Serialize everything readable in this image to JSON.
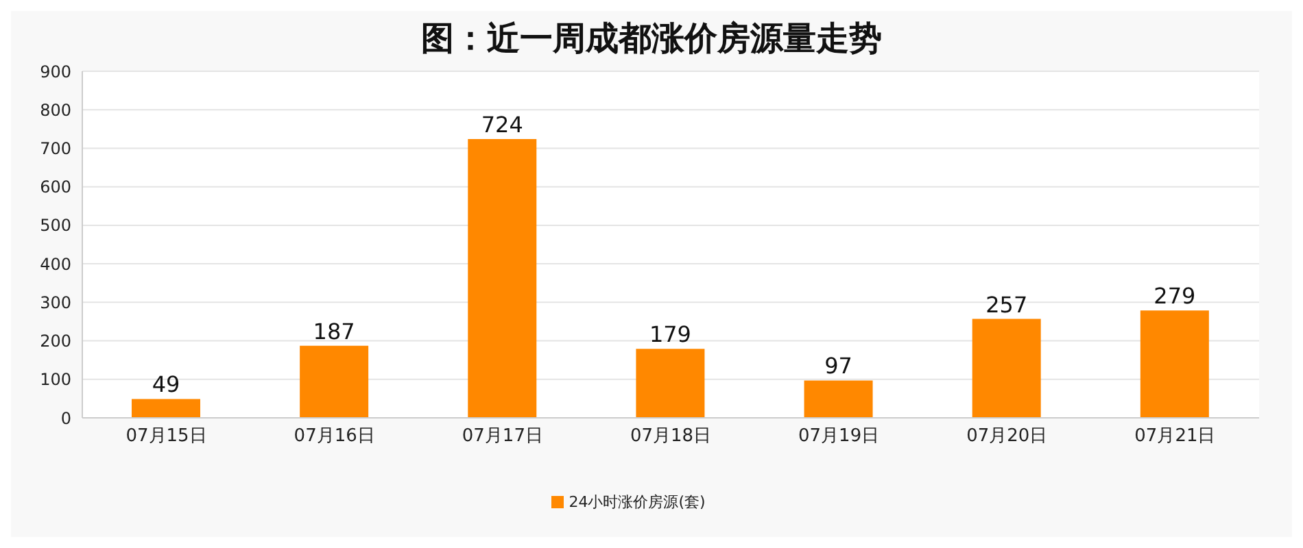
{
  "chart_data": {
    "type": "bar",
    "title": "图：近一周成都涨价房源量走势",
    "categories": [
      "07月15日",
      "07月16日",
      "07月17日",
      "07月18日",
      "07月19日",
      "07月20日",
      "07月21日"
    ],
    "series": [
      {
        "name": "24小时涨价房源(套)",
        "color": "#ff8800",
        "values": [
          49,
          187,
          724,
          179,
          97,
          257,
          279
        ]
      }
    ],
    "ylim": [
      0,
      900
    ],
    "yticks": [
      0,
      100,
      200,
      300,
      400,
      500,
      600,
      700,
      800,
      900
    ],
    "grid": "y",
    "legend": "bottom",
    "data_labels": true
  }
}
